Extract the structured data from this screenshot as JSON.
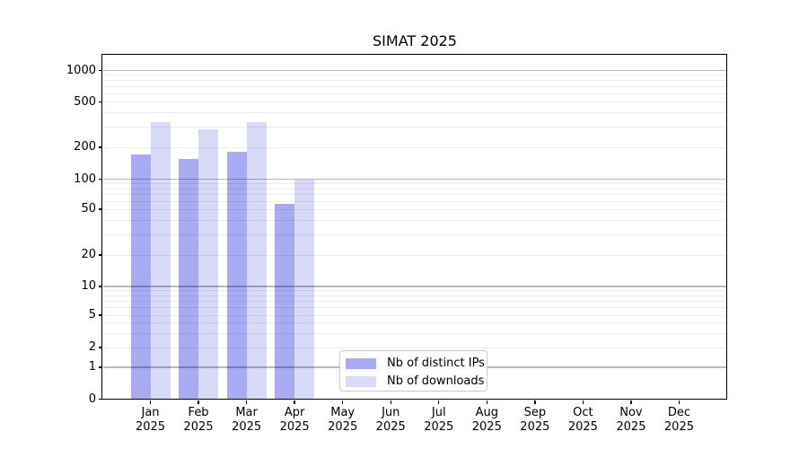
{
  "title": "SIMAT 2025",
  "colors": {
    "ips_bar": "#a9a9f4",
    "downloads_bar": "#d9d9f8",
    "axis": "#000000",
    "grid_major": "rgba(0,0,0,0.28)",
    "grid_minor": "rgba(0,0,0,0.075)",
    "legend_border": "#cbcbcb",
    "background": "#ffffff"
  },
  "y_axis": {
    "ticks": [
      1000,
      500,
      200,
      100,
      50,
      20,
      10,
      5,
      2,
      1,
      0
    ],
    "major_gridlines": [
      1,
      10,
      100,
      1000
    ],
    "minor_gridlines": [
      2,
      3,
      4,
      5,
      6,
      7,
      8,
      9,
      20,
      30,
      40,
      50,
      60,
      70,
      80,
      90,
      200,
      300,
      400,
      500,
      600,
      700,
      800,
      900
    ]
  },
  "legend": {
    "position": "lower center",
    "items": [
      {
        "label": "Nb of distinct IPs",
        "series_index": 0
      },
      {
        "label": "Nb of downloads",
        "series_index": 1
      }
    ]
  },
  "chart_data": {
    "type": "bar",
    "title": "SIMAT 2025",
    "categories": [
      "Jan 2025",
      "Feb 2025",
      "Mar 2025",
      "Apr 2025",
      "May 2025",
      "Jun 2025",
      "Jul 2025",
      "Aug 2025",
      "Sep 2025",
      "Oct 2025",
      "Nov 2025",
      "Dec 2025"
    ],
    "series": [
      {
        "name": "Nb of distinct IPs",
        "color": "#a9a9f4",
        "values": [
          170,
          156,
          180,
          57,
          0,
          0,
          0,
          0,
          0,
          0,
          0,
          0
        ]
      },
      {
        "name": "Nb of downloads",
        "color": "#d9d9f8",
        "values": [
          335,
          288,
          335,
          100,
          0,
          0,
          0,
          0,
          0,
          0,
          0,
          0
        ]
      }
    ],
    "xlabel": "",
    "ylabel": "",
    "yscale": "symlog",
    "y_ticks": [
      0,
      1,
      2,
      5,
      10,
      20,
      50,
      100,
      200,
      500,
      1000
    ],
    "ylim": [
      0,
      1400
    ],
    "grid": true,
    "legend_position": "lower center"
  }
}
